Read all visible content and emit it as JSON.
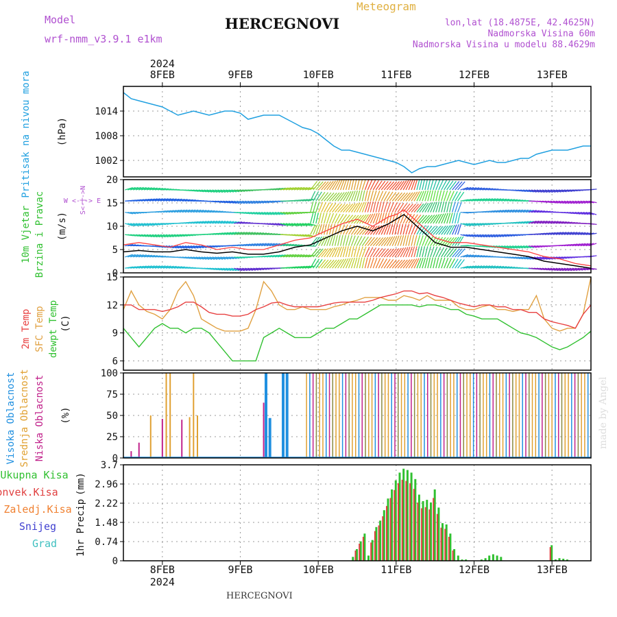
{
  "header": {
    "model_label": "Model",
    "model_name": "wrf-nmm_v3.9.1 e1km",
    "station": "HERCEGNOVI",
    "meteogram_label": "Meteogram",
    "lonlat": "lon,lat (18.4875E, 42.4625N)",
    "elevation": "Nadmorska Visina 60m",
    "elevation_model": "Nadmorska Visina u modelu 88.4629m"
  },
  "footer": {
    "station": "HERCEGNOVI",
    "credit": "made by Angel"
  },
  "colors": {
    "pressure": "#20a0e0",
    "wind_speed": "#000000",
    "wind_gust": "#ff4040",
    "temp2m": "#e84040",
    "sfc_temp": "#e0a040",
    "dewpoint": "#30c030",
    "cloud_high": "#2090e0",
    "cloud_mid": "#e0a030",
    "cloud_low": "#c0208a",
    "precip_total": "#30c030",
    "precip_conv": "#e04040",
    "precip_frozen": "#f08030",
    "snow": "#4040d0",
    "graupel": "#40c0c0"
  },
  "chart_data": [
    {
      "type": "line",
      "panel": "pressure",
      "ylabel": "Pritisak na nivou mora",
      "unit": "(hPa)",
      "ylim": [
        998,
        1020
      ],
      "yticks": [
        1002,
        1008,
        1014
      ],
      "x_days": [
        7.5,
        7.6,
        7.7,
        7.8,
        7.9,
        8.0,
        8.1,
        8.2,
        8.3,
        8.4,
        8.5,
        8.6,
        8.7,
        8.8,
        8.9,
        9.0,
        9.1,
        9.2,
        9.3,
        9.4,
        9.5,
        9.6,
        9.7,
        9.8,
        9.9,
        10.0,
        10.1,
        10.2,
        10.3,
        10.4,
        10.5,
        10.6,
        10.7,
        10.8,
        10.9,
        11.0,
        11.1,
        11.2,
        11.3,
        11.4,
        11.5,
        11.6,
        11.7,
        11.8,
        11.9,
        12.0,
        12.1,
        12.2,
        12.3,
        12.4,
        12.5,
        12.6,
        12.7,
        12.8,
        12.9,
        13.0,
        13.1,
        13.2,
        13.3,
        13.4,
        13.5
      ],
      "values": [
        1018.5,
        1017,
        1016.5,
        1016,
        1015.5,
        1015,
        1014,
        1013,
        1013.5,
        1014,
        1013.5,
        1013,
        1013.5,
        1014,
        1014,
        1013.5,
        1012,
        1012.5,
        1013,
        1013,
        1013,
        1012,
        1011,
        1010,
        1009.5,
        1008.5,
        1007,
        1005.5,
        1004.5,
        1004.5,
        1004,
        1003.5,
        1003,
        1002.5,
        1002,
        1001.5,
        1000.5,
        999,
        1000,
        1000.5,
        1000.5,
        1001,
        1001.5,
        1002,
        1001.5,
        1001,
        1001.5,
        1002,
        1001.5,
        1001.5,
        1002,
        1002.5,
        1002.5,
        1003.5,
        1004,
        1004.5,
        1004.5,
        1004.5,
        1005,
        1005.5,
        1005.5
      ]
    },
    {
      "type": "line",
      "panel": "wind",
      "ylabel_1": "10m Vjetar",
      "ylabel_2": "Brzina i Pravac",
      "unit": "(m/s)",
      "compass": "W <-|-> E",
      "compass_v": "S<-|->N",
      "ylim": [
        0,
        20
      ],
      "yticks": [
        0,
        5,
        10,
        15,
        20
      ],
      "x_days": [
        7.5,
        7.7,
        7.9,
        8.1,
        8.3,
        8.5,
        8.7,
        8.9,
        9.1,
        9.3,
        9.5,
        9.7,
        9.9,
        10.1,
        10.3,
        10.5,
        10.7,
        10.9,
        11.0,
        11.1,
        11.2,
        11.3,
        11.4,
        11.5,
        11.7,
        11.9,
        12.1,
        12.3,
        12.5,
        12.7,
        12.9,
        13.1,
        13.3,
        13.5
      ],
      "speed": [
        4.5,
        4.8,
        4.5,
        4.5,
        5,
        4.5,
        4.2,
        4.5,
        4,
        4,
        4.5,
        5.5,
        6,
        7.5,
        9,
        10,
        9,
        10.5,
        11.5,
        12.5,
        11,
        9.5,
        8,
        6.5,
        5.5,
        5.5,
        5,
        4.5,
        4,
        3.5,
        2.5,
        2,
        1.5,
        1
      ],
      "gust": [
        6,
        6.5,
        6,
        5.5,
        6.5,
        6,
        5,
        5.5,
        5,
        5,
        6,
        7,
        7.5,
        9,
        10.5,
        11.5,
        10,
        12,
        12.5,
        13.5,
        12,
        10.5,
        9,
        7.5,
        6.5,
        6.5,
        6,
        5.5,
        5,
        4.5,
        3.5,
        3,
        2,
        1.5
      ],
      "barb_color_scale_low": "#8020c0",
      "barb_color_scale_mid": "#20d080",
      "barb_color_scale_high": "#f06020"
    },
    {
      "type": "line",
      "panel": "temperature",
      "ylabel_1": "2m Temp",
      "ylabel_2": "SFC Temp",
      "ylabel_3": "dewpt Temp",
      "unit": "(C)",
      "ylim": [
        5,
        15
      ],
      "yticks": [
        6,
        9,
        12,
        15
      ],
      "x_days": [
        7.5,
        7.6,
        7.7,
        7.8,
        7.9,
        8.0,
        8.1,
        8.2,
        8.3,
        8.4,
        8.5,
        8.6,
        8.7,
        8.8,
        8.9,
        9.0,
        9.1,
        9.2,
        9.3,
        9.4,
        9.5,
        9.6,
        9.7,
        9.8,
        9.9,
        10.0,
        10.1,
        10.2,
        10.3,
        10.4,
        10.5,
        10.6,
        10.7,
        10.8,
        10.9,
        11.0,
        11.1,
        11.2,
        11.3,
        11.4,
        11.5,
        11.6,
        11.7,
        11.8,
        11.9,
        12.0,
        12.1,
        12.2,
        12.3,
        12.4,
        12.5,
        12.6,
        12.7,
        12.8,
        12.9,
        13.0,
        13.1,
        13.2,
        13.3,
        13.4,
        13.5
      ],
      "temp2m": [
        12,
        12,
        11.5,
        11.5,
        11.5,
        11.3,
        11.5,
        11.8,
        12.3,
        12.3,
        11.8,
        11.2,
        11,
        11,
        10.8,
        10.8,
        11,
        11.5,
        11.8,
        12.2,
        12.3,
        12,
        11.8,
        11.8,
        11.8,
        11.8,
        12,
        12.2,
        12.3,
        12.3,
        12.3,
        12.3,
        12.5,
        12.8,
        13,
        13.2,
        13.5,
        13.5,
        13.2,
        13.3,
        13,
        12.8,
        12.5,
        12.2,
        12,
        11.8,
        12,
        12,
        11.8,
        11.8,
        11.5,
        11.5,
        11.2,
        11.2,
        10.5,
        10.2,
        10,
        9.8,
        9.5,
        11,
        12
      ],
      "sfc_temp": [
        11.5,
        13.5,
        12,
        11.3,
        11,
        10.5,
        11.5,
        13.5,
        14.5,
        13,
        10.5,
        10,
        9.5,
        9.2,
        9.2,
        9.2,
        9.5,
        11.5,
        14.5,
        13.5,
        12,
        11.5,
        11.5,
        11.8,
        11.5,
        11.5,
        11.5,
        11.8,
        12,
        12.3,
        12.5,
        12.8,
        12.8,
        12.8,
        12.5,
        12.5,
        13,
        12.8,
        12.5,
        13,
        12.5,
        12.5,
        12.5,
        11.8,
        11.5,
        11.5,
        11.8,
        12,
        11.5,
        11.5,
        11.3,
        11.5,
        11.5,
        13,
        10.5,
        9.5,
        9.2,
        9.5,
        9.5,
        11,
        15
      ],
      "dewpoint": [
        9.5,
        8.5,
        7.5,
        8.5,
        9.5,
        10,
        9.5,
        9.5,
        9,
        9.5,
        9.5,
        9,
        8,
        7,
        6,
        6,
        6,
        6,
        8.5,
        9,
        9.5,
        9,
        8.5,
        8.5,
        8.5,
        9,
        9.5,
        9.5,
        10,
        10.5,
        10.5,
        11,
        11.5,
        12,
        12,
        12,
        12,
        12,
        11.8,
        12,
        12,
        11.8,
        11.5,
        11.5,
        11,
        10.8,
        10.5,
        10.5,
        10.5,
        10,
        9.5,
        9,
        8.8,
        8.5,
        8,
        7.5,
        7.2,
        7.5,
        8,
        8.5,
        9.2
      ]
    },
    {
      "type": "bar",
      "panel": "clouds",
      "ylabel_1": "Visoka Oblacnost",
      "ylabel_2": "Srednja Oblacnost",
      "ylabel_3": "Niska Oblacnost",
      "unit": "(%)",
      "ylim": [
        0,
        100
      ],
      "yticks": [
        0,
        25,
        50,
        75,
        100
      ],
      "high_hours": [
        [
          9.33,
          100
        ],
        [
          9.38,
          47
        ],
        [
          9.55,
          100
        ],
        [
          9.6,
          100
        ]
      ],
      "mid_hours": [
        [
          7.85,
          50
        ],
        [
          8.05,
          100
        ],
        [
          8.1,
          100
        ],
        [
          8.35,
          48
        ],
        [
          8.4,
          100
        ],
        [
          8.45,
          50
        ]
      ],
      "low_hours": [
        [
          7.6,
          8
        ],
        [
          7.7,
          18
        ],
        [
          8.0,
          46
        ],
        [
          8.25,
          45
        ],
        [
          9.3,
          65
        ]
      ],
      "overcast_start": 9.85,
      "overcast_end": 13.5
    },
    {
      "type": "bar",
      "panel": "precip",
      "legend": [
        "Ukupna Kisa",
        "Konvek.Kisa",
        "Zaledj.Kisa",
        "Snijeg",
        "Grad"
      ],
      "ylabel": "1hr Precip",
      "unit": "(mm)",
      "ylim": [
        0,
        3.7
      ],
      "yticks": [
        0,
        0.74,
        1.48,
        2.22,
        2.96,
        3.7
      ],
      "x_days": [
        10.45,
        10.5,
        10.55,
        10.6,
        10.65,
        10.7,
        10.75,
        10.8,
        10.85,
        10.9,
        10.95,
        11.0,
        11.05,
        11.1,
        11.15,
        11.2,
        11.25,
        11.3,
        11.35,
        11.4,
        11.45,
        11.5,
        11.55,
        11.6,
        11.65,
        11.7,
        11.75,
        11.8,
        11.85,
        11.9,
        12.1,
        12.15,
        12.2,
        12.25,
        12.3,
        12.35,
        13.0,
        13.05,
        13.1,
        13.15,
        13.2
      ],
      "values": [
        0.15,
        0.45,
        0.75,
        1.05,
        0.2,
        0.8,
        1.3,
        1.55,
        1.95,
        2.4,
        2.75,
        3.1,
        3.4,
        3.55,
        3.5,
        3.4,
        3.15,
        2.55,
        2.3,
        2.35,
        2.25,
        2.75,
        2.05,
        1.45,
        1.4,
        1.05,
        0.45,
        0.2,
        0.05,
        0.05,
        0.05,
        0.1,
        0.2,
        0.25,
        0.2,
        0.15,
        0.6,
        0.05,
        0.1,
        0.08,
        0.05
      ],
      "conv_fraction": 0.88
    }
  ],
  "time_axis": {
    "year": "2024",
    "day_labels": [
      "8FEB",
      "9FEB",
      "10FEB",
      "11FEB",
      "12FEB",
      "13FEB"
    ],
    "day_values": [
      8,
      9,
      10,
      11,
      12,
      13
    ],
    "x_range": [
      7.5,
      13.5
    ]
  }
}
